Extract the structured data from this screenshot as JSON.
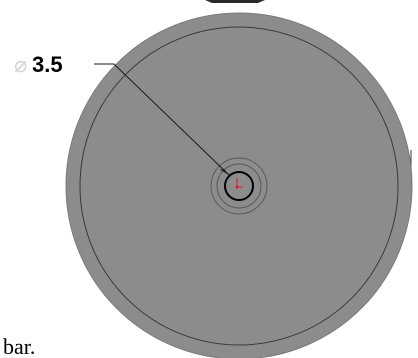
{
  "dimension": {
    "symbol": "⌀",
    "value": "3.5"
  },
  "caption": {
    "text": "bar."
  },
  "colors": {
    "background": "#ffffff",
    "disc_fill": "#8c8c8c",
    "edge_line": "#3a3a3a",
    "leader_line": "#1a1a1a",
    "hole_outline": "#000000",
    "origin_marker": "#e02020"
  }
}
